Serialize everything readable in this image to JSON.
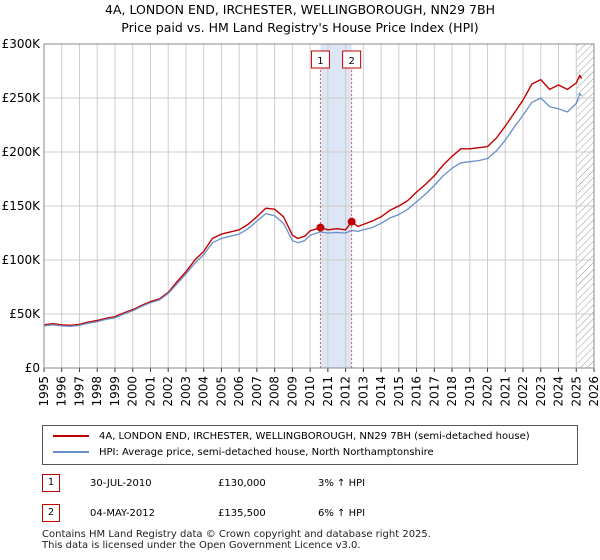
{
  "title_line1": "4A, LONDON END, IRCHESTER, WELLINGBOROUGH, NN29 7BH",
  "title_line2": "Price paid vs. HM Land Registry's House Price Index (HPI)",
  "chart_data": {
    "type": "line",
    "x_range": [
      1995,
      2026
    ],
    "ylim": [
      0,
      300000
    ],
    "y_ticks": [
      {
        "value": 0,
        "label": "£0"
      },
      {
        "value": 50000,
        "label": "£50K"
      },
      {
        "value": 100000,
        "label": "£100K"
      },
      {
        "value": 150000,
        "label": "£150K"
      },
      {
        "value": 200000,
        "label": "£200K"
      },
      {
        "value": 250000,
        "label": "£250K"
      },
      {
        "value": 300000,
        "label": "£300K"
      }
    ],
    "x_ticks": [
      "1995",
      "1996",
      "1997",
      "1998",
      "1999",
      "2000",
      "2001",
      "2002",
      "2003",
      "2004",
      "2005",
      "2006",
      "2007",
      "2008",
      "2009",
      "2010",
      "2011",
      "2012",
      "2013",
      "2014",
      "2015",
      "2016",
      "2017",
      "2018",
      "2019",
      "2020",
      "2021",
      "2022",
      "2023",
      "2024",
      "2025",
      "2026"
    ],
    "grid": true,
    "colors": {
      "property": "#c00000",
      "hpi": "#6a8fcb",
      "shade": "#dde6f5",
      "marker_line": "#e05a5a",
      "grid": "#cccccc",
      "hatch": "#999999"
    },
    "shaded_range": [
      2010.58,
      2012.34
    ],
    "future_hatch_from": 2025.0,
    "series": [
      {
        "name": "4A, LONDON END, IRCHESTER, WELLINGBOROUGH, NN29 7BH (semi-detached house)",
        "key": "property",
        "points": [
          [
            1995.0,
            40000
          ],
          [
            1995.5,
            41000
          ],
          [
            1996.0,
            40000
          ],
          [
            1996.5,
            39500
          ],
          [
            1997.0,
            40500
          ],
          [
            1997.5,
            42500
          ],
          [
            1998.0,
            44000
          ],
          [
            1998.5,
            46000
          ],
          [
            1999.0,
            47500
          ],
          [
            1999.5,
            51000
          ],
          [
            2000.0,
            54000
          ],
          [
            2000.5,
            58000
          ],
          [
            2001.0,
            61500
          ],
          [
            2001.5,
            64000
          ],
          [
            2002.0,
            70000
          ],
          [
            2002.5,
            80000
          ],
          [
            2003.0,
            89000
          ],
          [
            2003.5,
            100000
          ],
          [
            2004.0,
            108000
          ],
          [
            2004.5,
            120000
          ],
          [
            2005.0,
            124000
          ],
          [
            2005.5,
            126000
          ],
          [
            2006.0,
            128000
          ],
          [
            2006.5,
            133000
          ],
          [
            2007.0,
            140000
          ],
          [
            2007.5,
            148000
          ],
          [
            2008.0,
            147000
          ],
          [
            2008.5,
            140000
          ],
          [
            2009.0,
            123000
          ],
          [
            2009.3,
            120000
          ],
          [
            2009.7,
            122000
          ],
          [
            2010.0,
            127000
          ],
          [
            2010.58,
            130000
          ],
          [
            2011.0,
            128000
          ],
          [
            2011.5,
            129000
          ],
          [
            2012.0,
            128000
          ],
          [
            2012.34,
            135500
          ],
          [
            2012.7,
            131000
          ],
          [
            2013.0,
            133000
          ],
          [
            2013.5,
            136000
          ],
          [
            2014.0,
            140000
          ],
          [
            2014.5,
            146000
          ],
          [
            2015.0,
            150000
          ],
          [
            2015.5,
            155000
          ],
          [
            2016.0,
            163000
          ],
          [
            2016.5,
            170000
          ],
          [
            2017.0,
            178000
          ],
          [
            2017.5,
            188000
          ],
          [
            2018.0,
            196000
          ],
          [
            2018.5,
            203000
          ],
          [
            2019.0,
            203000
          ],
          [
            2019.5,
            204000
          ],
          [
            2020.0,
            205000
          ],
          [
            2020.5,
            213000
          ],
          [
            2021.0,
            224000
          ],
          [
            2021.5,
            236000
          ],
          [
            2022.0,
            248000
          ],
          [
            2022.5,
            263000
          ],
          [
            2023.0,
            267000
          ],
          [
            2023.5,
            258000
          ],
          [
            2024.0,
            262000
          ],
          [
            2024.5,
            258000
          ],
          [
            2025.0,
            264000
          ],
          [
            2025.2,
            271000
          ],
          [
            2025.3,
            268000
          ]
        ]
      },
      {
        "name": "HPI: Average price, semi-detached house, North Northamptonshire",
        "key": "hpi",
        "points": [
          [
            1995.0,
            39000
          ],
          [
            1995.5,
            40000
          ],
          [
            1996.0,
            39000
          ],
          [
            1996.5,
            38500
          ],
          [
            1997.0,
            39500
          ],
          [
            1997.5,
            41500
          ],
          [
            1998.0,
            43000
          ],
          [
            1998.5,
            45000
          ],
          [
            1999.0,
            46500
          ],
          [
            1999.5,
            50000
          ],
          [
            2000.0,
            53000
          ],
          [
            2000.5,
            57000
          ],
          [
            2001.0,
            60500
          ],
          [
            2001.5,
            63000
          ],
          [
            2002.0,
            69000
          ],
          [
            2002.5,
            78000
          ],
          [
            2003.0,
            87000
          ],
          [
            2003.5,
            97000
          ],
          [
            2004.0,
            105000
          ],
          [
            2004.5,
            116000
          ],
          [
            2005.0,
            120000
          ],
          [
            2005.5,
            122000
          ],
          [
            2006.0,
            124000
          ],
          [
            2006.5,
            129000
          ],
          [
            2007.0,
            136000
          ],
          [
            2007.5,
            143000
          ],
          [
            2008.0,
            141000
          ],
          [
            2008.5,
            134000
          ],
          [
            2009.0,
            118000
          ],
          [
            2009.3,
            116000
          ],
          [
            2009.7,
            118000
          ],
          [
            2010.0,
            123000
          ],
          [
            2010.58,
            126000
          ],
          [
            2011.0,
            125000
          ],
          [
            2011.5,
            125500
          ],
          [
            2012.0,
            125000
          ],
          [
            2012.34,
            127500
          ],
          [
            2012.7,
            126500
          ],
          [
            2013.0,
            128000
          ],
          [
            2013.5,
            130000
          ],
          [
            2014.0,
            134000
          ],
          [
            2014.5,
            139000
          ],
          [
            2015.0,
            142000
          ],
          [
            2015.5,
            147000
          ],
          [
            2016.0,
            154000
          ],
          [
            2016.5,
            161000
          ],
          [
            2017.0,
            169000
          ],
          [
            2017.5,
            178000
          ],
          [
            2018.0,
            185000
          ],
          [
            2018.5,
            190000
          ],
          [
            2019.0,
            191000
          ],
          [
            2019.5,
            192000
          ],
          [
            2020.0,
            194000
          ],
          [
            2020.5,
            201000
          ],
          [
            2021.0,
            211000
          ],
          [
            2021.5,
            223000
          ],
          [
            2022.0,
            234000
          ],
          [
            2022.5,
            246000
          ],
          [
            2023.0,
            250000
          ],
          [
            2023.5,
            242000
          ],
          [
            2024.0,
            240000
          ],
          [
            2024.5,
            237000
          ],
          [
            2025.0,
            245000
          ],
          [
            2025.2,
            254000
          ],
          [
            2025.3,
            252000
          ]
        ]
      }
    ],
    "markers": [
      {
        "label": "1",
        "x": 2010.58,
        "y": 130000
      },
      {
        "label": "2",
        "x": 2012.34,
        "y": 135500
      }
    ]
  },
  "transactions": [
    {
      "num": "1",
      "date": "30-JUL-2010",
      "price": "£130,000",
      "hpi": "3% ↑ HPI"
    },
    {
      "num": "2",
      "date": "04-MAY-2012",
      "price": "£135,500",
      "hpi": "6% ↑ HPI"
    }
  ],
  "footer_line1": "Contains HM Land Registry data © Crown copyright and database right 2025.",
  "footer_line2": "This data is licensed under the Open Government Licence v3.0."
}
